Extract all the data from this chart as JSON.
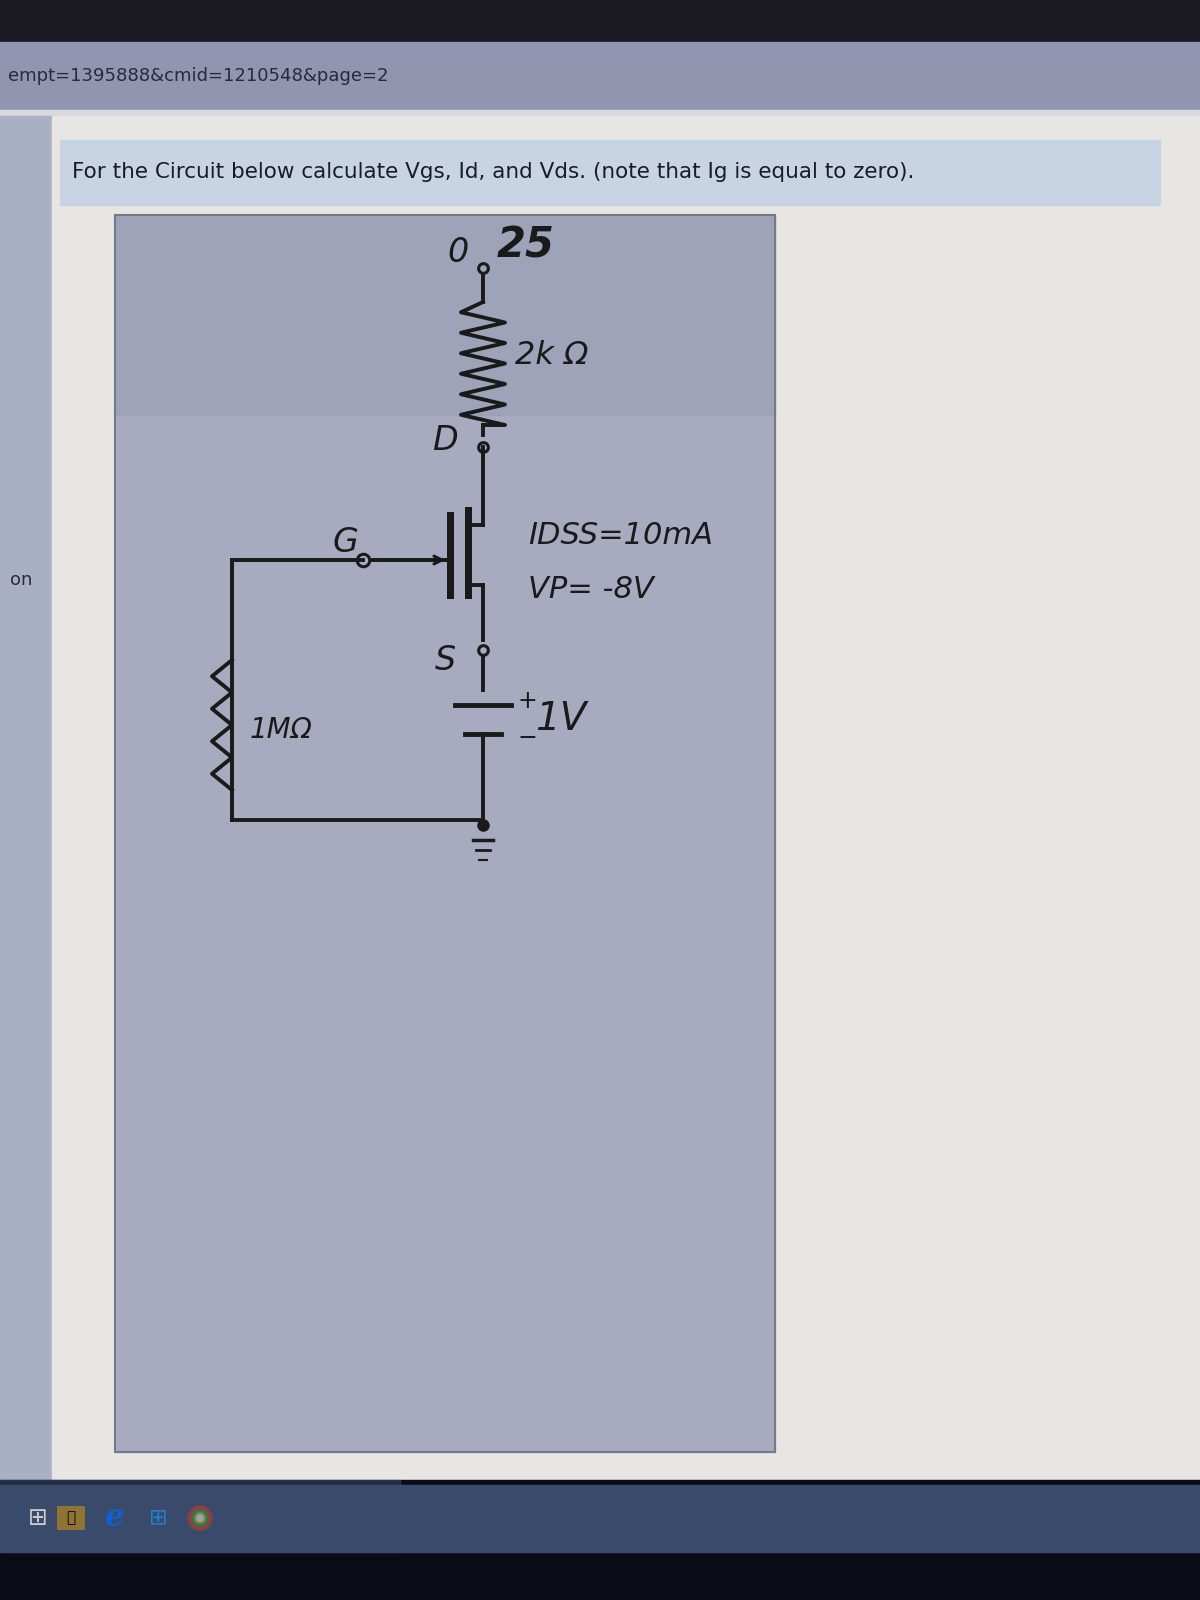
{
  "url_text": "empt=1395888&cmid=1210548&page=2",
  "question_text": "For the Circuit below calculate Vgs, Id, and Vds. (note that Ig is equal to zero).",
  "label_on": "on",
  "circuit_label_idss": "IDSS=10mA",
  "circuit_label_vp": "VP= -8V",
  "circuit_label_vss": "1V",
  "bg_outer": "#c8cad8",
  "bg_url_bar": "#9295b0",
  "bg_main_content": "#e8e6e2",
  "bg_light_blue": "#c8d8e8",
  "bg_circuit_photo": "#b0b4c8",
  "bg_taskbar": "#3a4a6a",
  "bg_very_dark": "#151520",
  "color_wire": "#1a1a1a",
  "color_url_text": "#2a2840",
  "color_question": "#1a1a2e",
  "color_sidebar": "#aab0c4"
}
